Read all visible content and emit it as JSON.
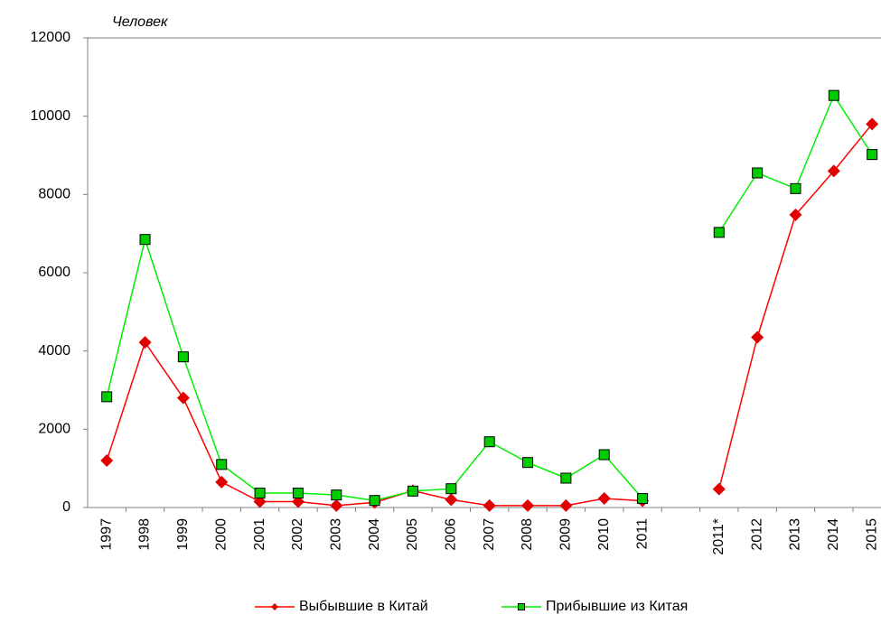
{
  "chart_data": {
    "type": "line",
    "y_label": "Человек",
    "categories": [
      "1997",
      "1998",
      "1999",
      "2000",
      "2001",
      "2002",
      "2003",
      "2004",
      "2005",
      "2006",
      "2007",
      "2008",
      "2009",
      "2010",
      "2011",
      null,
      "2011*",
      "2012",
      "2013",
      "2014",
      "2015"
    ],
    "series": [
      {
        "name": "Выбывшие в Китай",
        "color": "#ff0000",
        "marker": "diamond",
        "marker_color": "#e00000",
        "values": [
          1200,
          4220,
          2800,
          650,
          150,
          150,
          50,
          130,
          430,
          200,
          50,
          50,
          50,
          230,
          170,
          null,
          470,
          4350,
          7480,
          8600,
          9800
        ]
      },
      {
        "name": "Прибывшие из Китая",
        "color": "#00ee00",
        "marker": "square",
        "marker_color": "#00cc00",
        "values": [
          2830,
          6850,
          3850,
          1100,
          370,
          370,
          320,
          180,
          420,
          480,
          1680,
          1150,
          750,
          1350,
          230,
          null,
          7030,
          8550,
          8150,
          10530,
          9020
        ]
      }
    ],
    "ylim": [
      0,
      12000
    ],
    "yticks": [
      0,
      2000,
      4000,
      6000,
      8000,
      10000,
      12000
    ],
    "grid": false,
    "legend": "bottom"
  }
}
